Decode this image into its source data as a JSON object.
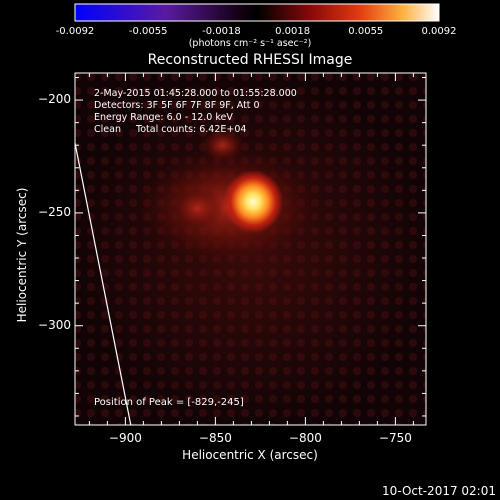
{
  "colorbar": {
    "ticks": [
      "-0.0092",
      "-0.0055",
      "-0.0018",
      "0.0018",
      "0.0055",
      "0.0092"
    ],
    "units": "(photons cm⁻² s⁻¹ asec⁻²)",
    "range": [
      -0.0092,
      0.0092
    ]
  },
  "info": {
    "time": "2-May-2015 01:45:28.000 to 01:55:28.000",
    "detectors": "Detectors: 3F 5F 6F 7F 8F 9F, Att 0",
    "energy": "Energy Range: 6.0 - 12.0 keV",
    "clean": "Clean     Total counts: 6.42E+04"
  },
  "peak_label": "Position of Peak = [-829,-245]",
  "footer": "10-Oct-2017 02:01",
  "colors": {
    "background": "#000000",
    "text": "#ffffff",
    "peak_core": "#ffffaa"
  },
  "chart_data": {
    "type": "heatmap",
    "title": "Reconstructed RHESSI Image",
    "xlabel": "Heliocentric X (arcsec)",
    "ylabel": "Heliocentric Y (arcsec)",
    "xlim": [
      -928,
      -733
    ],
    "ylim": [
      -344,
      -188
    ],
    "xticks": [
      -900,
      -850,
      -800,
      -750
    ],
    "yticks": [
      -200,
      -250,
      -300
    ],
    "xtick_labels": [
      "−900",
      "−850",
      "−800",
      "−750"
    ],
    "ytick_labels": [
      "−200",
      "−250",
      "−300"
    ],
    "colormap": "blue-purple-black-red-yellow-white",
    "peak": {
      "x": -829,
      "y": -245
    },
    "limb_line": [
      [
        -928,
        -219
      ],
      [
        -897,
        -344
      ]
    ],
    "sources": [
      {
        "x": -829,
        "y": -245,
        "intensity": 0.0092
      },
      {
        "x": -860,
        "y": -248,
        "intensity": 0.004
      },
      {
        "x": -846,
        "y": -220,
        "intensity": 0.003
      }
    ]
  }
}
